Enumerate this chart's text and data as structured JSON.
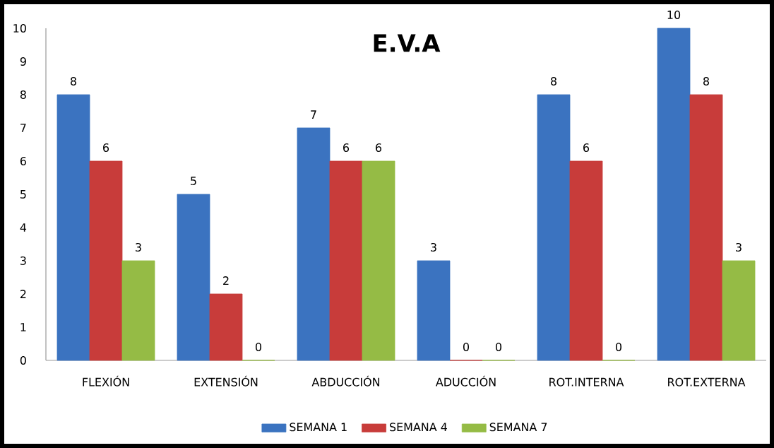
{
  "chart_data": {
    "type": "bar",
    "title": "E.V.A",
    "categories": [
      "FLEXIÓN",
      "EXTENSIÓN",
      "ABDUCCIÓN",
      "ADUCCIÓN",
      "ROT.INTERNA",
      "ROT.EXTERNA"
    ],
    "series": [
      {
        "name": "SEMANA 1",
        "color": "#3b73c0",
        "values": [
          8,
          5,
          7,
          3,
          8,
          10
        ]
      },
      {
        "name": "SEMANA 4",
        "color": "#c83c3a",
        "values": [
          6,
          2,
          6,
          0,
          6,
          8
        ]
      },
      {
        "name": "SEMANA 7",
        "color": "#95bb45",
        "values": [
          3,
          0,
          6,
          0,
          0,
          3
        ]
      }
    ],
    "ylim": [
      0,
      10
    ],
    "yticks": [
      0,
      1,
      2,
      3,
      4,
      5,
      6,
      7,
      8,
      9,
      10
    ],
    "data_labels": true,
    "grid": false,
    "legend": "bottom"
  }
}
